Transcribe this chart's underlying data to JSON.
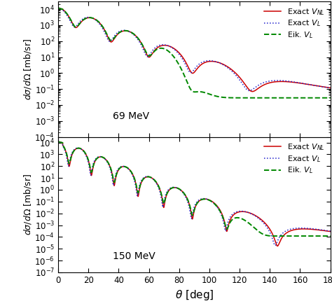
{
  "title": "",
  "xlabel": "$\\theta$ [deg]",
  "ylabel": "$d\\sigma/d\\Omega$ [mb/sr]",
  "xlim": [
    0,
    180
  ],
  "panel1": {
    "ylim": [
      0.0001,
      30000.0
    ],
    "label": "69 MeV"
  },
  "panel2": {
    "ylim": [
      1e-07,
      30000.0
    ],
    "label": "150 MeV"
  },
  "legend_labels": [
    "Exact $V_{NL}$",
    "Exact $V_L$",
    "Eik. $V_L$"
  ],
  "colors": [
    "#cc0000",
    "#2222cc",
    "#008800"
  ],
  "linestyles": [
    "-",
    ":",
    "--"
  ],
  "linewidths": [
    1.1,
    1.1,
    1.4
  ],
  "bg_color": "#ffffff"
}
